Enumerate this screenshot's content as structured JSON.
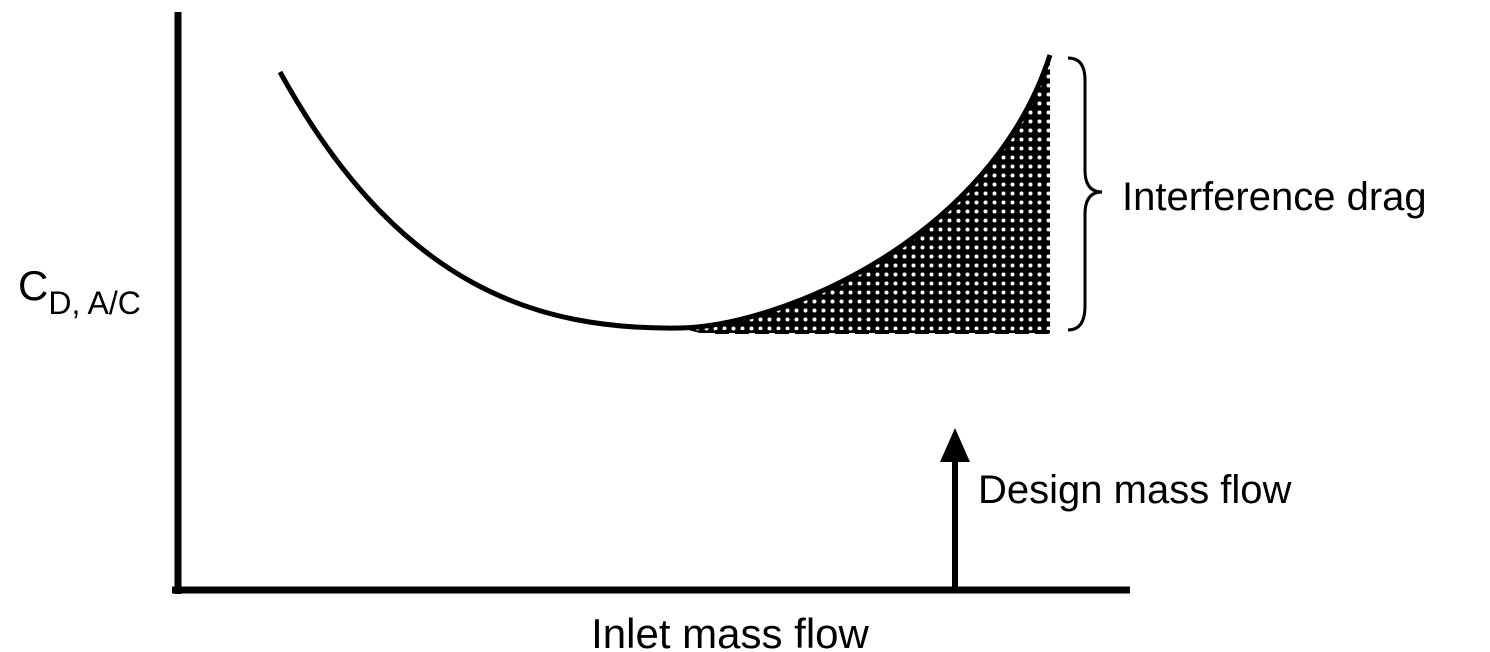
{
  "y_axis_label": {
    "main": "C",
    "subscript": "D, A/C"
  },
  "x_axis_label": "Inlet mass flow",
  "annotations": {
    "interference": "Interference drag",
    "design": "Design mass flow"
  }
}
